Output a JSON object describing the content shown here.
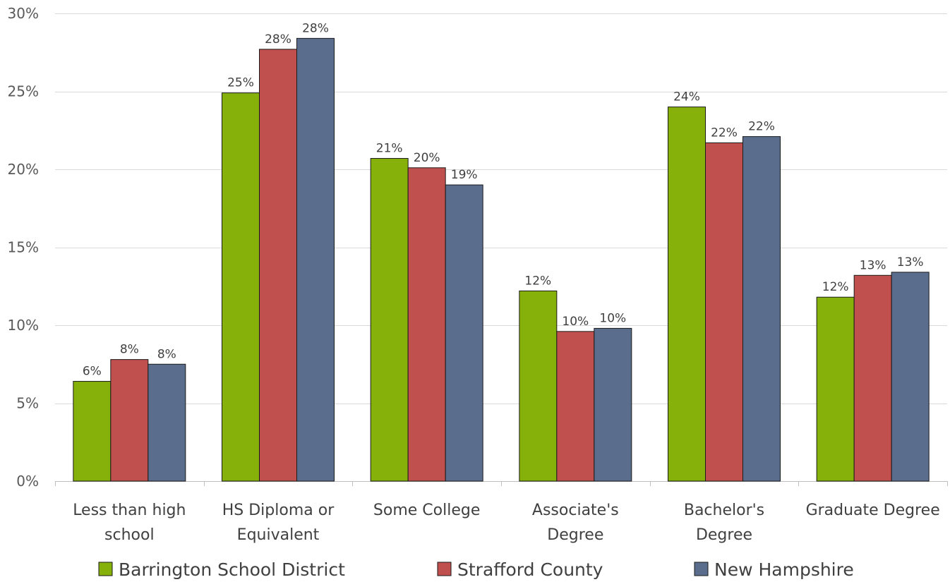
{
  "chart_data": {
    "type": "bar",
    "title": "",
    "xlabel": "",
    "ylabel": "",
    "categories": [
      [
        "Less than high",
        "school"
      ],
      [
        "HS Diploma or",
        "Equivalent"
      ],
      [
        "Some College"
      ],
      [
        "Associate's",
        "Degree"
      ],
      [
        "Bachelor's",
        "Degree"
      ],
      [
        "Graduate Degree"
      ]
    ],
    "series": [
      {
        "name": "Barrington School District",
        "color": "#86B00A",
        "values": [
          6.4,
          24.9,
          20.7,
          12.2,
          24.0,
          11.8
        ],
        "labels": [
          "6%",
          "25%",
          "21%",
          "12%",
          "24%",
          "12%"
        ]
      },
      {
        "name": "Strafford County",
        "color": "#C0504D",
        "values": [
          7.8,
          27.7,
          20.1,
          9.6,
          21.7,
          13.2
        ],
        "labels": [
          "8%",
          "28%",
          "20%",
          "10%",
          "22%",
          "13%"
        ]
      },
      {
        "name": "New Hampshire",
        "color": "#5A6D8C",
        "values": [
          7.5,
          28.4,
          19.0,
          9.8,
          22.1,
          13.4
        ],
        "labels": [
          "8%",
          "28%",
          "19%",
          "10%",
          "22%",
          "13%"
        ]
      }
    ],
    "ylim": [
      0,
      30
    ],
    "yticks": [
      0,
      5,
      10,
      15,
      20,
      25,
      30
    ],
    "ytick_labels": [
      "0%",
      "5%",
      "10%",
      "15%",
      "20%",
      "25%",
      "30%"
    ],
    "grid": true,
    "legend_position": "bottom"
  }
}
